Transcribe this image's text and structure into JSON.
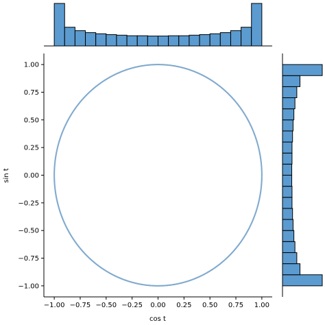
{
  "chart_data": {
    "type": "scatter",
    "subtype": "joint-plot",
    "xlabel": "cos t",
    "ylabel": "sin t",
    "xlim": [
      -1.1,
      1.1
    ],
    "ylim": [
      -1.1,
      1.1
    ],
    "xticks": [
      "−1.00",
      "−0.75",
      "−0.50",
      "−0.25",
      "0.00",
      "0.25",
      "0.50",
      "0.75",
      "1.00"
    ],
    "yticks": [
      "−1.00",
      "−0.75",
      "−0.50",
      "−0.25",
      "0.00",
      "0.25",
      "0.50",
      "0.75",
      "1.00"
    ],
    "grid": false,
    "scatter": {
      "description_shape": "unit circle",
      "x_formula": "cos t",
      "y_formula": "sin t",
      "t_range": [
        0,
        6.2832
      ],
      "n_points": 1000,
      "color": "#7ba7cc"
    },
    "marginal_x": {
      "bin_range": [
        -1.0,
        1.0
      ],
      "bins": 20,
      "counts": [
        150,
        66,
        54,
        47,
        43,
        40,
        38,
        36,
        36,
        35,
        35,
        36,
        36,
        38,
        40,
        43,
        47,
        54,
        66,
        150
      ]
    },
    "marginal_y": {
      "bin_range": [
        -1.0,
        1.0
      ],
      "bins": 20,
      "counts_bottom_to_top": [
        150,
        66,
        54,
        47,
        43,
        40,
        38,
        36,
        36,
        35,
        35,
        36,
        36,
        38,
        40,
        43,
        47,
        54,
        66,
        150
      ]
    },
    "hist_color": "#5b9bd0",
    "hist_edge": "#000000"
  }
}
